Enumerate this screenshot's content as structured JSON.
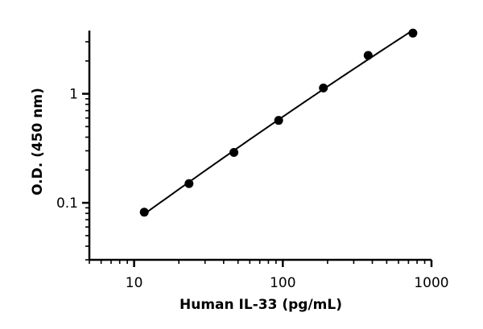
{
  "chart_data": {
    "type": "scatter",
    "xlabel": "Human IL-33 (pg/mL)",
    "ylabel": "O.D. (450 nm)",
    "x_scale": "log",
    "y_scale": "log",
    "xlim": [
      5,
      1000
    ],
    "ylim": [
      0.03,
      3.8
    ],
    "x_ticks": [
      10,
      100,
      1000
    ],
    "x_tick_labels": [
      "10",
      "100",
      "1000"
    ],
    "y_ticks": [
      0.1,
      1
    ],
    "y_tick_labels": [
      "0.1",
      "1"
    ],
    "grid": false,
    "legend": "none",
    "fit_curve": true,
    "point_color": "#000000",
    "series": [
      {
        "x": [
          11.7,
          23.4,
          46.9,
          93.8,
          187.5,
          375,
          750
        ],
        "y": [
          0.082,
          0.15,
          0.29,
          0.57,
          1.13,
          2.25,
          3.6
        ]
      }
    ]
  }
}
